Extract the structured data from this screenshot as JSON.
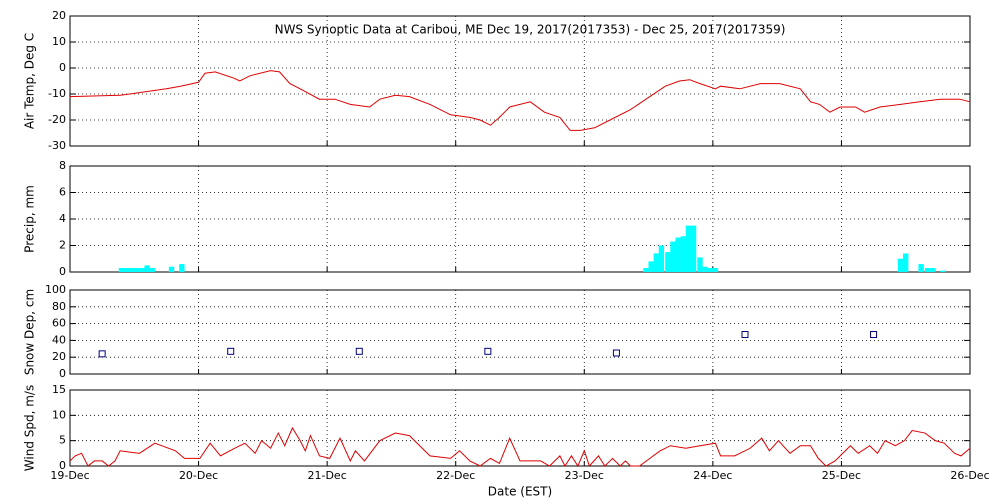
{
  "chart_data": [
    {
      "type": "line",
      "title": "NWS Synoptic Data at Caribou, ME   Dec 19, 2017(2017353) - Dec 25, 2017(2017359)",
      "ylabel": "Air Temp, Deg C",
      "color": "#e00000",
      "x": [
        0,
        0.39,
        0.75,
        0.86,
        1.0,
        1.05,
        1.13,
        1.28,
        1.32,
        1.4,
        1.56,
        1.63,
        1.71,
        1.79,
        1.94,
        2.06,
        2.18,
        2.33,
        2.41,
        2.53,
        2.64,
        2.8,
        2.96,
        3.11,
        3.19,
        3.27,
        3.34,
        3.42,
        3.58,
        3.69,
        3.81,
        3.89,
        3.97,
        4.08,
        4.2,
        4.36,
        4.51,
        4.63,
        4.74,
        4.82,
        4.9,
        5.02,
        5.06,
        5.21,
        5.37,
        5.52,
        5.68,
        5.76,
        5.83,
        5.91,
        5.99,
        6.11,
        6.18,
        6.3,
        6.46,
        6.61,
        6.77,
        6.92,
        7.0
      ],
      "values": [
        -11,
        -10.5,
        -8,
        -7,
        -5.5,
        -2,
        -1.5,
        -4,
        -5,
        -3,
        -1,
        -1.5,
        -6,
        -8,
        -12,
        -12,
        -14,
        -15,
        -12,
        -10.5,
        -11,
        -14,
        -18,
        -19,
        -20,
        -22,
        -19,
        -15,
        -13,
        -17,
        -19,
        -24,
        -24,
        -23,
        -20,
        -16,
        -11,
        -7,
        -5,
        -4.5,
        -6,
        -8,
        -7,
        -8,
        -6,
        -6,
        -8,
        -13,
        -14,
        -17,
        -15,
        -15,
        -17,
        -15,
        -14,
        -13,
        -12,
        -12,
        -13
      ],
      "xlim": [
        0,
        7
      ],
      "xticks": [
        0,
        1,
        2,
        3,
        4,
        5,
        6,
        7
      ],
      "ylim": [
        -30,
        20
      ],
      "yticks": [
        -30,
        -20,
        -10,
        0,
        10,
        20
      ],
      "grid": true
    },
    {
      "type": "bar",
      "ylabel": "Precip, mm",
      "color": "#00ffff",
      "x": [
        0.4,
        0.44,
        0.48,
        0.52,
        0.56,
        0.6,
        0.64,
        0.79,
        0.87,
        4.48,
        4.52,
        4.56,
        4.6,
        4.65,
        4.69,
        4.73,
        4.77,
        4.81,
        4.85,
        4.9,
        4.94,
        4.98,
        5.02,
        6.46,
        6.5,
        6.62,
        6.67,
        6.71,
        6.79
      ],
      "values": [
        0.3,
        0.3,
        0.3,
        0.3,
        0.3,
        0.5,
        0.3,
        0.4,
        0.6,
        0.3,
        0.8,
        1.4,
        2.0,
        1.5,
        2.3,
        2.6,
        2.7,
        3.5,
        3.5,
        1.1,
        0.4,
        0.3,
        0.3,
        1.0,
        1.4,
        0.6,
        0.3,
        0.3,
        0.1
      ],
      "xlim": [
        0,
        7
      ],
      "xticks": [
        0,
        1,
        2,
        3,
        4,
        5,
        6,
        7
      ],
      "ylim": [
        0,
        8
      ],
      "yticks": [
        0,
        2,
        4,
        6,
        8
      ],
      "grid": true
    },
    {
      "type": "scatter",
      "ylabel": "Snow Dep, cm",
      "color": "#000080",
      "x": [
        0.25,
        1.25,
        2.25,
        3.25,
        4.25,
        5.25,
        6.25
      ],
      "values": [
        24,
        27,
        27,
        27,
        25,
        47,
        47
      ],
      "xlim": [
        0,
        7
      ],
      "xticks": [
        0,
        1,
        2,
        3,
        4,
        5,
        6,
        7
      ],
      "ylim": [
        0,
        100
      ],
      "yticks": [
        0,
        20,
        40,
        60,
        80,
        100
      ],
      "grid": true
    },
    {
      "type": "line",
      "ylabel": "Wind Spd, m/s",
      "xlabel": "Date (EST)",
      "color": "#e00000",
      "x": [
        0,
        0.04,
        0.09,
        0.14,
        0.19,
        0.25,
        0.3,
        0.35,
        0.39,
        0.54,
        0.66,
        0.82,
        0.89,
        1.01,
        1.09,
        1.17,
        1.28,
        1.36,
        1.44,
        1.49,
        1.56,
        1.62,
        1.67,
        1.73,
        1.79,
        1.83,
        1.87,
        1.94,
        2.02,
        2.1,
        2.18,
        2.22,
        2.29,
        2.41,
        2.53,
        2.64,
        2.72,
        2.8,
        2.96,
        3.03,
        3.11,
        3.19,
        3.27,
        3.34,
        3.42,
        3.5,
        3.58,
        3.66,
        3.73,
        3.81,
        3.85,
        3.9,
        3.95,
        4.0,
        4.04,
        4.11,
        4.16,
        4.22,
        4.28,
        4.32,
        4.36,
        4.43,
        4.51,
        4.59,
        4.67,
        4.79,
        4.9,
        5.02,
        5.06,
        5.17,
        5.29,
        5.38,
        5.44,
        5.51,
        5.6,
        5.68,
        5.76,
        5.82,
        5.88,
        5.95,
        6.07,
        6.13,
        6.22,
        6.28,
        6.34,
        6.42,
        6.49,
        6.55,
        6.65,
        6.73,
        6.8,
        6.88,
        6.93,
        7.0
      ],
      "values": [
        1,
        2,
        2.5,
        0,
        1,
        1,
        0,
        1,
        3,
        2.5,
        4.5,
        3,
        1.5,
        1.5,
        4.5,
        2,
        3.5,
        4.5,
        2.5,
        5,
        3.5,
        6.5,
        4,
        7.5,
        5,
        3,
        6,
        2,
        1.5,
        5.5,
        1,
        3,
        1,
        5,
        6.5,
        6,
        4,
        2,
        1.5,
        3,
        1,
        0,
        1.5,
        0.5,
        5.5,
        1,
        1,
        1,
        0,
        2,
        0,
        2,
        0,
        3,
        0,
        2,
        0,
        1.5,
        0,
        1,
        0,
        0,
        1.5,
        3,
        4,
        3.5,
        4,
        4.5,
        2,
        2,
        3.5,
        5.5,
        3,
        5,
        2.5,
        4,
        4,
        1.5,
        0,
        1,
        4,
        2.5,
        4,
        2.5,
        5,
        4,
        5,
        7,
        6.5,
        5,
        4.5,
        2.5,
        2,
        3.5
      ],
      "xlim": [
        0,
        7
      ],
      "xticks": [
        {
          "value": 0,
          "label": "19-Dec"
        },
        {
          "value": 1,
          "label": "20-Dec"
        },
        {
          "value": 2,
          "label": "21-Dec"
        },
        {
          "value": 3,
          "label": "22-Dec"
        },
        {
          "value": 4,
          "label": "23-Dec"
        },
        {
          "value": 5,
          "label": "24-Dec"
        },
        {
          "value": 6,
          "label": "25-Dec"
        },
        {
          "value": 7,
          "label": "26-Dec"
        }
      ],
      "ylim": [
        0,
        15
      ],
      "yticks": [
        0,
        5,
        10,
        15
      ],
      "grid": true
    }
  ]
}
